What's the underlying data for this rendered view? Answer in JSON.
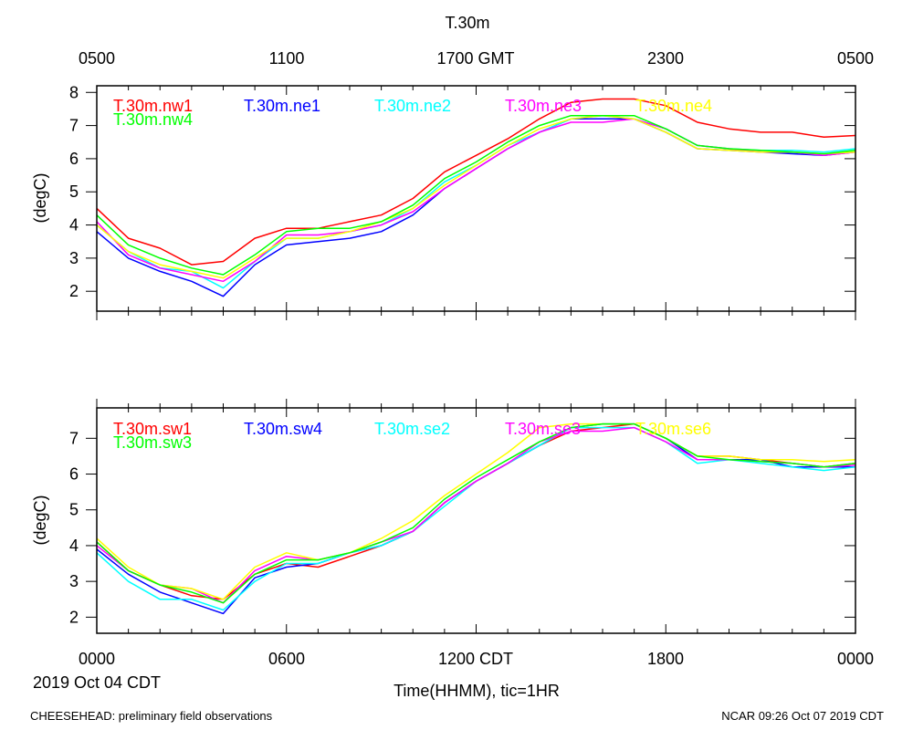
{
  "title": "T.30m",
  "top_axis_labels": [
    "0500",
    "1100",
    "1700 GMT",
    "2300",
    "0500"
  ],
  "bottom_axis_labels": [
    "0000",
    "0600",
    "1200 CDT",
    "1800",
    "0000"
  ],
  "date_label": "2019 Oct 04 CDT",
  "x_axis_title": "Time(HHMM), tic=1HR",
  "footer_left": "CHEESEHEAD: preliminary field observations",
  "footer_right": "NCAR 09:26 Oct 07 2019 CDT",
  "chart_data": [
    {
      "type": "line",
      "panel": "top",
      "ylabel": "(degC)",
      "x_unit": "hours since 0000 CDT",
      "xlim": [
        0,
        24
      ],
      "ylim": [
        1.4,
        8.2
      ],
      "yticks": [
        2,
        3,
        4,
        5,
        6,
        7,
        8
      ],
      "x": [
        0,
        1,
        2,
        3,
        4,
        5,
        6,
        7,
        8,
        9,
        10,
        11,
        12,
        13,
        14,
        15,
        16,
        17,
        18,
        19,
        20,
        21,
        22,
        23,
        24
      ],
      "series": [
        {
          "name": "T.30m.nw1",
          "color": "#ff0000",
          "values": [
            4.5,
            3.6,
            3.3,
            2.8,
            2.9,
            3.6,
            3.9,
            3.9,
            4.1,
            4.3,
            4.8,
            5.6,
            6.1,
            6.6,
            7.2,
            7.7,
            7.8,
            7.8,
            7.6,
            7.1,
            6.9,
            6.8,
            6.8,
            6.65,
            6.7
          ]
        },
        {
          "name": "T.30m.ne1",
          "color": "#0000ff",
          "values": [
            3.8,
            3.0,
            2.6,
            2.3,
            1.85,
            2.8,
            3.4,
            3.5,
            3.6,
            3.8,
            4.3,
            5.1,
            5.7,
            6.3,
            6.8,
            7.2,
            7.2,
            7.2,
            6.8,
            6.3,
            6.25,
            6.2,
            6.15,
            6.1,
            6.2
          ]
        },
        {
          "name": "T.30m.ne2",
          "color": "#00ffff",
          "values": [
            4.0,
            3.2,
            2.7,
            2.6,
            2.1,
            2.9,
            3.6,
            3.6,
            3.8,
            4.0,
            4.5,
            5.3,
            5.8,
            6.4,
            6.8,
            7.2,
            7.3,
            7.2,
            6.9,
            6.4,
            6.3,
            6.25,
            6.25,
            6.2,
            6.3
          ]
        },
        {
          "name": "T.30m.ne3",
          "color": "#ff00ff",
          "values": [
            4.1,
            3.1,
            2.7,
            2.5,
            2.3,
            2.9,
            3.7,
            3.7,
            3.8,
            4.0,
            4.4,
            5.1,
            5.7,
            6.3,
            6.8,
            7.1,
            7.1,
            7.2,
            6.9,
            6.4,
            6.3,
            6.2,
            6.2,
            6.1,
            6.2
          ]
        },
        {
          "name": "T.30m.ne4",
          "color": "#ffff00",
          "values": [
            4.0,
            3.2,
            2.8,
            2.6,
            2.4,
            3.0,
            3.6,
            3.6,
            3.8,
            4.1,
            4.5,
            5.2,
            5.8,
            6.4,
            6.9,
            7.2,
            7.3,
            7.2,
            6.8,
            6.3,
            6.25,
            6.2,
            6.2,
            6.15,
            6.2
          ]
        },
        {
          "name": "T.30m.nw4",
          "color": "#00ff00",
          "values": [
            4.3,
            3.4,
            3.0,
            2.7,
            2.5,
            3.1,
            3.8,
            3.9,
            3.9,
            4.1,
            4.6,
            5.4,
            5.9,
            6.5,
            7.0,
            7.3,
            7.3,
            7.3,
            6.9,
            6.4,
            6.3,
            6.25,
            6.2,
            6.15,
            6.25
          ]
        }
      ]
    },
    {
      "type": "line",
      "panel": "bottom",
      "ylabel": "(degC)",
      "x_unit": "hours since 0000 CDT",
      "xlim": [
        0,
        24
      ],
      "ylim": [
        1.55,
        7.85
      ],
      "yticks": [
        2,
        3,
        4,
        5,
        6,
        7
      ],
      "x": [
        0,
        1,
        2,
        3,
        4,
        5,
        6,
        7,
        8,
        9,
        10,
        11,
        12,
        13,
        14,
        15,
        16,
        17,
        18,
        19,
        20,
        21,
        22,
        23,
        24
      ],
      "series": [
        {
          "name": "T.30m.sw1",
          "color": "#ff0000",
          "values": [
            4.1,
            3.3,
            2.9,
            2.6,
            2.5,
            3.2,
            3.5,
            3.4,
            3.7,
            4.0,
            4.4,
            5.2,
            5.8,
            6.3,
            6.8,
            7.2,
            7.3,
            7.4,
            7.0,
            6.5,
            6.5,
            6.4,
            6.3,
            6.2,
            6.3
          ]
        },
        {
          "name": "T.30m.sw4",
          "color": "#0000ff",
          "values": [
            3.9,
            3.2,
            2.7,
            2.4,
            2.1,
            3.1,
            3.4,
            3.5,
            3.8,
            4.0,
            4.4,
            5.2,
            5.8,
            6.3,
            6.8,
            7.3,
            7.4,
            7.4,
            7.0,
            6.4,
            6.4,
            6.4,
            6.2,
            6.2,
            6.2
          ]
        },
        {
          "name": "T.30m.se2",
          "color": "#00ffff",
          "values": [
            3.8,
            3.0,
            2.5,
            2.5,
            2.2,
            3.0,
            3.5,
            3.5,
            3.8,
            4.0,
            4.4,
            5.1,
            5.8,
            6.3,
            6.8,
            7.3,
            7.3,
            7.3,
            6.9,
            6.3,
            6.4,
            6.3,
            6.2,
            6.1,
            6.2
          ]
        },
        {
          "name": "T.30m.se3",
          "color": "#ff00ff",
          "values": [
            4.0,
            3.3,
            2.9,
            2.8,
            2.4,
            3.3,
            3.7,
            3.6,
            3.8,
            4.1,
            4.4,
            5.2,
            5.8,
            6.3,
            6.9,
            7.2,
            7.2,
            7.3,
            6.9,
            6.4,
            6.4,
            6.35,
            6.3,
            6.2,
            6.25
          ]
        },
        {
          "name": "T.30m.se6",
          "color": "#ffff00",
          "values": [
            4.2,
            3.4,
            2.9,
            2.8,
            2.5,
            3.4,
            3.8,
            3.6,
            3.8,
            4.2,
            4.7,
            5.4,
            6.0,
            6.6,
            7.3,
            7.4,
            7.4,
            7.4,
            7.0,
            6.5,
            6.5,
            6.4,
            6.4,
            6.35,
            6.4
          ]
        },
        {
          "name": "T.30m.sw3",
          "color": "#00ff00",
          "values": [
            4.1,
            3.3,
            2.9,
            2.7,
            2.4,
            3.2,
            3.6,
            3.6,
            3.8,
            4.1,
            4.5,
            5.3,
            5.9,
            6.4,
            6.9,
            7.3,
            7.4,
            7.4,
            7.0,
            6.5,
            6.4,
            6.35,
            6.3,
            6.2,
            6.3
          ]
        }
      ]
    }
  ]
}
